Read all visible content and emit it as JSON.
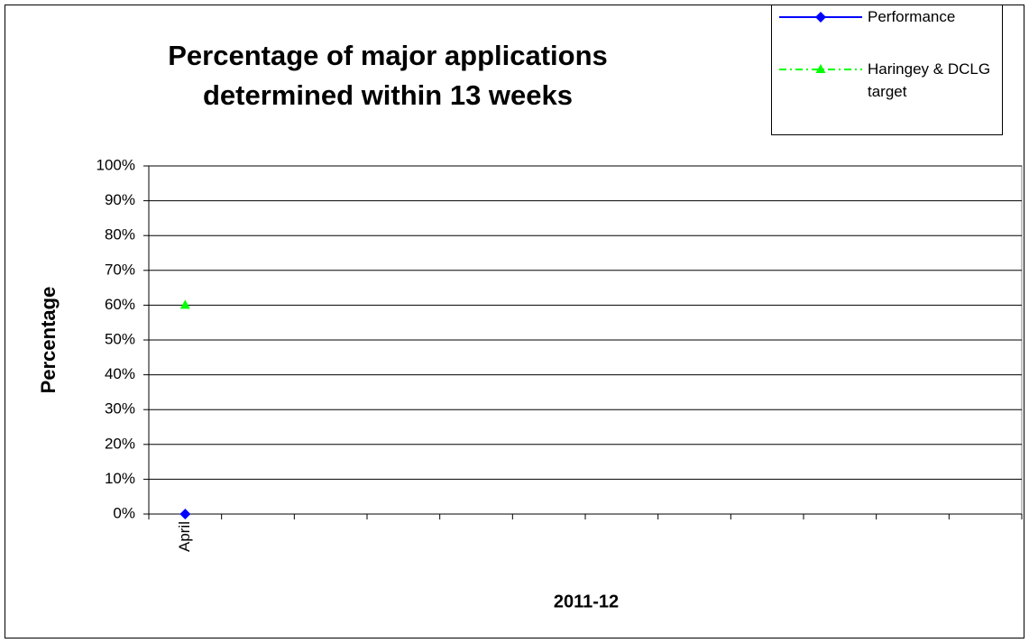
{
  "chart_data": {
    "type": "line",
    "title": "Percentage of major applications determined within 13 weeks",
    "x_label": "2011-12",
    "y_label": "Percentage",
    "categories": [
      "April",
      null,
      null,
      null,
      null,
      null,
      null,
      null,
      null,
      null,
      null,
      null
    ],
    "series": [
      {
        "name": "Performance",
        "color": "#0000ff",
        "marker": "diamond",
        "dash": "solid",
        "values": [
          0,
          null,
          null,
          null,
          null,
          null,
          null,
          null,
          null,
          null,
          null,
          null
        ]
      },
      {
        "name": "Haringey & DCLG target",
        "color": "#00ff00",
        "marker": "triangle",
        "dash": "dashdot",
        "values": [
          60,
          null,
          null,
          null,
          null,
          null,
          null,
          null,
          null,
          null,
          null,
          null
        ]
      }
    ],
    "ylim": [
      0,
      100
    ],
    "yticks": [
      {
        "value": 0,
        "label": "0%"
      },
      {
        "value": 10,
        "label": "10%"
      },
      {
        "value": 20,
        "label": "20%"
      },
      {
        "value": 30,
        "label": "30%"
      },
      {
        "value": 40,
        "label": "40%"
      },
      {
        "value": 50,
        "label": "50%"
      },
      {
        "value": 60,
        "label": "60%"
      },
      {
        "value": 70,
        "label": "70%"
      },
      {
        "value": 80,
        "label": "80%"
      },
      {
        "value": 90,
        "label": "90%"
      },
      {
        "value": 100,
        "label": "100%"
      }
    ],
    "grid": true,
    "legend": "top-right"
  }
}
